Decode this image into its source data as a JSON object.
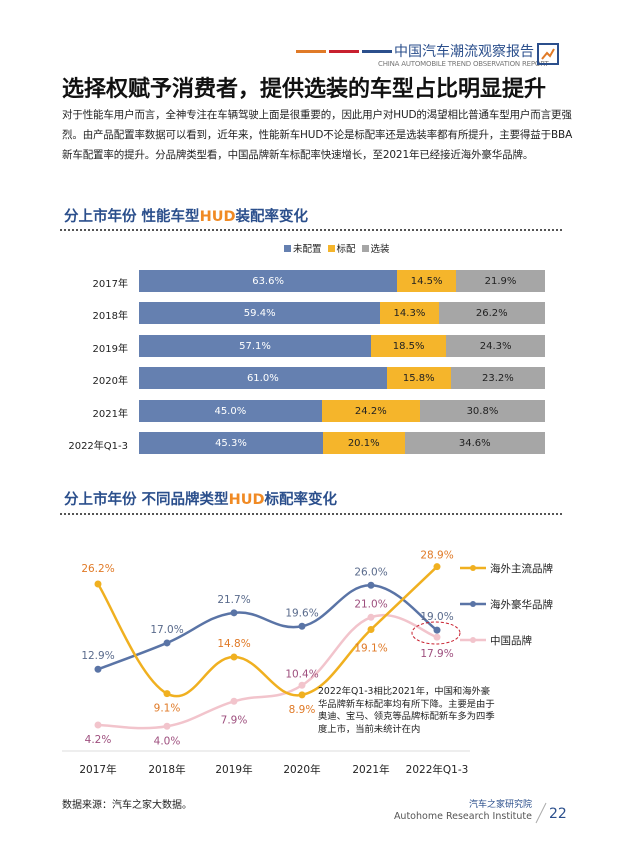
{
  "header": {
    "title": "中国汽车潮流观察报告",
    "subtitle": "CHINA AUTOMOBILE TREND OBSERVATION REPORT",
    "stripe_colors": [
      "#e07a27",
      "#c8202f",
      "#2b4f8c"
    ]
  },
  "page_title": "选择权赋予消费者，提供选装的车型占比明显提升",
  "paragraph": "对于性能车用户而言，全神专注在车辆驾驶上面是很重要的，因此用户对HUD的渴望相比普通车型用户而言更强烈。由产品配置率数据可以看到，近年来，性能新车HUD不论是标配率还是选装率都有所提升，主要得益于BBA新车配置率的提升。分品牌类型看，中国品牌新车标配率快速增长，至2021年已经接近海外豪华品牌。",
  "section1": {
    "prefix": "分上市年份  性能车型",
    "highlight": "HUD",
    "suffix": "装配率变化"
  },
  "section2": {
    "prefix": "分上市年份  不同品牌类型",
    "highlight": "HUD",
    "suffix": "标配率变化"
  },
  "chart_data": [
    {
      "type": "bar",
      "stacked": true,
      "orientation": "horizontal",
      "categories": [
        "2017年",
        "2018年",
        "2019年",
        "2020年",
        "2021年",
        "2022年Q1-3"
      ],
      "series": [
        {
          "name": "未配置",
          "color": "#6580b0",
          "values": [
            63.6,
            59.4,
            57.1,
            61.0,
            45.0,
            45.3
          ],
          "labels": [
            "63.6%",
            "59.4%",
            "57.1%",
            "61.0%",
            "45.0%",
            "45.3%"
          ]
        },
        {
          "name": "标配",
          "color": "#f5b52b",
          "values": [
            14.5,
            14.3,
            18.5,
            15.8,
            24.2,
            20.1
          ],
          "labels": [
            "14.5%",
            "14.3%",
            "18.5%",
            "15.8%",
            "24.2%",
            "20.1%"
          ]
        },
        {
          "name": "选装",
          "color": "#a6a6a6",
          "values": [
            21.9,
            26.2,
            24.3,
            23.2,
            30.8,
            34.6
          ],
          "labels": [
            "21.9%",
            "26.2%",
            "24.3%",
            "23.2%",
            "30.8%",
            "34.6%"
          ]
        }
      ],
      "xlim": [
        0,
        100
      ],
      "legend": "top"
    },
    {
      "type": "line",
      "categories": [
        "2017年",
        "2018年",
        "2019年",
        "2020年",
        "2021年",
        "2022年Q1-3"
      ],
      "series": [
        {
          "name": "海外主流品牌",
          "color": "#f0b020",
          "label_color": "#e07a27",
          "values": [
            26.2,
            9.1,
            14.8,
            8.9,
            19.1,
            28.9
          ],
          "labels": [
            "26.2%",
            "9.1%",
            "14.8%",
            "8.9%",
            "19.1%",
            "28.9%"
          ]
        },
        {
          "name": "海外豪华品牌",
          "color": "#5a74a6",
          "label_color": "#5a6b8c",
          "values": [
            12.9,
            17.0,
            21.7,
            19.6,
            26.0,
            19.0
          ],
          "labels": [
            "12.9%",
            "17.0%",
            "21.7%",
            "19.6%",
            "26.0%",
            "19.0%"
          ]
        },
        {
          "name": "中国品牌",
          "color": "#f2c4cc",
          "label_color": "#9e4f7e",
          "values": [
            4.2,
            4.0,
            7.9,
            10.4,
            21.0,
            17.9
          ],
          "labels": [
            "4.2%",
            "4.0%",
            "7.9%",
            "10.4%",
            "21.0%",
            "17.9%"
          ]
        }
      ],
      "legend": "right",
      "annotation": "2022年Q1-3相比2021年，中国和海外豪华品牌新车标配率均有所下降。主要是由于奥迪、宝马、领克等品牌标配新车多为四季度上市，当前未统计在内"
    }
  ],
  "footer": {
    "source": "数据来源：汽车之家大数据。",
    "org_cn": "汽车之家研究院",
    "org_en": "Autohome Research Institute",
    "page_number": "22"
  }
}
